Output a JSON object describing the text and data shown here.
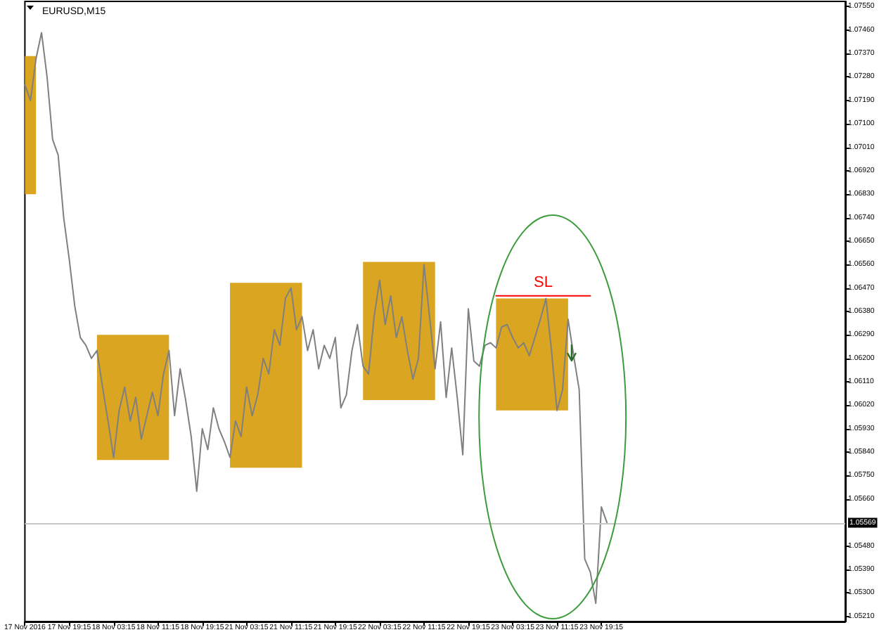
{
  "chart_data": {
    "type": "line",
    "title": "EURUSD,M15",
    "marker": "none",
    "categories": [
      "17 Nov 2016",
      null,
      null,
      null,
      null,
      null,
      null,
      null,
      "17 Nov 19:15",
      null,
      null,
      null,
      null,
      null,
      null,
      null,
      "18 Nov 03:15",
      null,
      null,
      null,
      null,
      null,
      null,
      null,
      "18 Nov 11:15",
      null,
      null,
      null,
      null,
      null,
      null,
      null,
      "18 Nov 19:15",
      null,
      null,
      null,
      null,
      null,
      null,
      null,
      "21 Nov 03:15",
      null,
      null,
      null,
      null,
      null,
      null,
      null,
      "21 Nov 11:15",
      null,
      null,
      null,
      null,
      null,
      null,
      null,
      "21 Nov 19:15",
      null,
      null,
      null,
      null,
      null,
      null,
      null,
      "22 Nov 03:15",
      null,
      null,
      null,
      null,
      null,
      null,
      null,
      "22 Nov 11:15",
      null,
      null,
      null,
      null,
      null,
      null,
      null,
      "22 Nov 19:15",
      null,
      null,
      null,
      null,
      null,
      null,
      null,
      "23 Nov 03:15",
      null,
      null,
      null,
      null,
      null,
      null,
      null,
      "23 Nov 11:15",
      null,
      null,
      null,
      null,
      null,
      null,
      null,
      "23 Nov 19:15",
      null,
      null,
      null,
      null,
      null,
      null,
      null,
      null,
      null,
      null,
      null,
      null,
      null,
      null,
      null,
      null,
      null,
      null,
      null,
      null,
      null,
      null,
      null,
      null,
      null,
      null,
      null,
      null,
      null,
      null,
      null,
      null,
      null,
      null,
      null,
      null,
      null,
      null,
      null,
      null,
      null,
      null,
      null,
      null
    ],
    "ylim": [
      1.0519,
      1.0757
    ],
    "yticks": [
      {
        "value": 1.0521,
        "label": "1.05210"
      },
      {
        "value": 1.053,
        "label": "1.05300"
      },
      {
        "value": 1.0539,
        "label": "1.05390"
      },
      {
        "value": 1.0548,
        "label": "1.05480"
      },
      {
        "value": 1.0566,
        "label": "1.05660"
      },
      {
        "value": 1.0575,
        "label": "1.05750"
      },
      {
        "value": 1.0584,
        "label": "1.05840"
      },
      {
        "value": 1.0593,
        "label": "1.05930"
      },
      {
        "value": 1.0602,
        "label": "1.06020"
      },
      {
        "value": 1.0611,
        "label": "1.06110"
      },
      {
        "value": 1.062,
        "label": "1.06200"
      },
      {
        "value": 1.0629,
        "label": "1.06290"
      },
      {
        "value": 1.0638,
        "label": "1.06380"
      },
      {
        "value": 1.0647,
        "label": "1.06470"
      },
      {
        "value": 1.0656,
        "label": "1.06560"
      },
      {
        "value": 1.0665,
        "label": "1.06650"
      },
      {
        "value": 1.0674,
        "label": "1.06740"
      },
      {
        "value": 1.0683,
        "label": "1.06830"
      },
      {
        "value": 1.0692,
        "label": "1.06920"
      },
      {
        "value": 1.0701,
        "label": "1.07010"
      },
      {
        "value": 1.071,
        "label": "1.07100"
      },
      {
        "value": 1.0719,
        "label": "1.07190"
      },
      {
        "value": 1.0728,
        "label": "1.07280"
      },
      {
        "value": 1.0737,
        "label": "1.07370"
      },
      {
        "value": 1.0746,
        "label": "1.07460"
      },
      {
        "value": 1.0755,
        "label": "1.07550"
      }
    ],
    "series": [
      {
        "color": "#daa520",
        "values": [
          null,
          null,
          null,
          null,
          null,
          null,
          null,
          null,
          null,
          null,
          null,
          null,
          null,
          null,
          null,
          null,
          null,
          null,
          null,
          null,
          null,
          null,
          null,
          null,
          null,
          null,
          null,
          null,
          null,
          null,
          null,
          null,
          null,
          null,
          null,
          null,
          null,
          null,
          null,
          null,
          null,
          null,
          null,
          null,
          null,
          null,
          null,
          null,
          null,
          null,
          null,
          null,
          null,
          null,
          null,
          null,
          null,
          null,
          null,
          null,
          null,
          null,
          null,
          null,
          null,
          null,
          null,
          null,
          null,
          null,
          null,
          null,
          null,
          null,
          null,
          null,
          null,
          null,
          null,
          null,
          null,
          null,
          null,
          null,
          null,
          null,
          null,
          null,
          null,
          null,
          null,
          null,
          null,
          null,
          null,
          null,
          null,
          null,
          null,
          null,
          null,
          null,
          null,
          null,
          null,
          null,
          null,
          null,
          null,
          null,
          null,
          null,
          null,
          null,
          null,
          null,
          null,
          null,
          null,
          null,
          null,
          null,
          null,
          null,
          null,
          null,
          null,
          null,
          null,
          null,
          null,
          null,
          null,
          null,
          null,
          null,
          null,
          null,
          null,
          null,
          null,
          null,
          null,
          null,
          null,
          null,
          null,
          null,
          null
        ],
        "lower": [
          1.0683,
          1.0683,
          1.0683,
          null,
          null,
          null,
          null,
          null,
          null,
          null,
          null,
          null,
          null,
          1.0581,
          1.0581,
          1.0581,
          1.0581,
          1.0581,
          1.0581,
          1.0581,
          1.0581,
          1.0581,
          1.0581,
          1.0581,
          1.0581,
          1.0581,
          1.0581,
          null,
          null,
          null,
          null,
          null,
          null,
          null,
          null,
          null,
          null,
          1.0578,
          1.0578,
          1.0578,
          1.0578,
          1.0578,
          1.0578,
          1.0578,
          1.0578,
          1.0578,
          1.0578,
          1.0578,
          1.0578,
          1.0578,
          1.0578,
          null,
          null,
          null,
          null,
          null,
          null,
          null,
          null,
          null,
          null,
          1.0604,
          1.0604,
          1.0604,
          1.0604,
          1.0604,
          1.0604,
          1.0604,
          1.0604,
          1.0604,
          1.0604,
          1.0604,
          1.0604,
          1.0604,
          1.0604,
          null,
          null,
          null,
          null,
          null,
          null,
          null,
          null,
          null,
          null,
          1.06,
          1.06,
          1.06,
          1.06,
          1.06,
          1.06,
          1.06,
          1.06,
          1.06,
          1.06,
          1.06,
          1.06,
          1.06,
          1.06,
          null,
          null,
          null,
          null,
          null,
          null,
          null,
          null,
          null,
          null,
          null,
          null,
          null,
          null,
          null,
          null,
          null,
          null,
          null,
          null,
          null,
          null,
          null,
          null,
          null,
          null,
          null,
          null,
          null,
          null,
          null,
          null,
          null,
          null,
          null,
          null,
          null,
          null,
          null,
          null,
          null,
          null,
          null,
          null,
          null,
          null,
          null,
          null,
          null,
          null
        ],
        "upper": [
          1.0736,
          1.0736,
          1.0736,
          null,
          null,
          null,
          null,
          null,
          null,
          null,
          null,
          null,
          null,
          1.0629,
          1.0629,
          1.0629,
          1.0629,
          1.0629,
          1.0629,
          1.0629,
          1.0629,
          1.0629,
          1.0629,
          1.0629,
          1.0629,
          1.0629,
          1.0629,
          null,
          null,
          null,
          null,
          null,
          null,
          null,
          null,
          null,
          null,
          1.0649,
          1.0649,
          1.0649,
          1.0649,
          1.0649,
          1.0649,
          1.0649,
          1.0649,
          1.0649,
          1.0649,
          1.0649,
          1.0649,
          1.0649,
          1.0649,
          null,
          null,
          null,
          null,
          null,
          null,
          null,
          null,
          null,
          null,
          1.0657,
          1.0657,
          1.0657,
          1.0657,
          1.0657,
          1.0657,
          1.0657,
          1.0657,
          1.0657,
          1.0657,
          1.0657,
          1.0657,
          1.0657,
          1.0657,
          null,
          null,
          null,
          null,
          null,
          null,
          null,
          null,
          null,
          null,
          1.0643,
          1.0643,
          1.0643,
          1.0643,
          1.0643,
          1.0643,
          1.0643,
          1.0643,
          1.0643,
          1.0643,
          1.0643,
          1.0643,
          1.0643,
          1.0643,
          null,
          null,
          null,
          null,
          null,
          null,
          null,
          null,
          null,
          null,
          null,
          null,
          null,
          null,
          null,
          null,
          null,
          null,
          null,
          null,
          null,
          null,
          null,
          null,
          null,
          null,
          null,
          null,
          null,
          null,
          null,
          null,
          null,
          null,
          null,
          null,
          null,
          null,
          null,
          null,
          null,
          null,
          null,
          null,
          null,
          null,
          null,
          null,
          null,
          null
        ]
      },
      {
        "color": "#808080",
        "values": [
          1.0725,
          1.0719,
          1.0735,
          1.0745,
          1.0728,
          1.0704,
          1.0698,
          1.0674,
          1.0658,
          1.064,
          1.0628,
          1.0625,
          1.062,
          1.0623,
          1.0609,
          1.0596,
          1.0582,
          1.06,
          1.0609,
          1.0596,
          1.0605,
          1.0589,
          1.0598,
          1.0607,
          1.0598,
          1.0614,
          1.0623,
          1.0598,
          1.0616,
          1.0604,
          1.059,
          1.0569,
          1.0593,
          1.0585,
          1.0601,
          1.0593,
          1.0588,
          1.0582,
          1.0596,
          1.059,
          1.0609,
          1.0598,
          1.0606,
          1.062,
          1.0614,
          1.0631,
          1.0625,
          1.0643,
          1.0647,
          1.0631,
          1.0636,
          1.0623,
          1.0631,
          1.0616,
          1.0625,
          1.062,
          1.0628,
          1.0601,
          1.0606,
          1.0623,
          1.0633,
          1.0617,
          1.0614,
          1.0636,
          1.065,
          1.0633,
          1.0644,
          1.0628,
          1.0636,
          1.0623,
          1.0612,
          1.062,
          1.0656,
          1.0636,
          1.0616,
          1.0634,
          1.0605,
          1.0624,
          1.0605,
          1.0583,
          1.0639,
          1.0619,
          1.0617,
          1.0625,
          1.0626,
          1.0624,
          1.0632,
          1.0633,
          1.0628,
          1.0624,
          1.0626,
          1.0621,
          1.0628,
          1.0635,
          1.0643,
          1.0623,
          1.06,
          1.0608,
          1.0635,
          1.0621,
          1.0608,
          1.0543,
          1.0538,
          1.0526,
          1.0563,
          1.0557,
          null,
          null,
          null,
          null,
          null,
          null,
          null,
          null,
          null,
          null,
          null,
          null,
          null,
          null,
          null,
          null,
          null,
          null,
          null,
          null,
          null,
          null,
          null,
          null,
          null,
          null,
          null,
          null,
          null,
          null,
          null,
          null,
          null,
          null,
          null,
          null,
          null,
          null,
          null,
          null,
          null,
          null,
          null
        ]
      },
      {
        "name": "SL",
        "color": "#ff0000",
        "values": [
          null,
          null,
          null,
          null,
          null,
          null,
          null,
          null,
          null,
          null,
          null,
          null,
          null,
          null,
          null,
          null,
          null,
          null,
          null,
          null,
          null,
          null,
          null,
          null,
          null,
          null,
          null,
          null,
          null,
          null,
          null,
          null,
          null,
          null,
          null,
          null,
          null,
          null,
          null,
          null,
          null,
          null,
          null,
          null,
          null,
          null,
          null,
          null,
          null,
          null,
          null,
          null,
          null,
          null,
          null,
          null,
          null,
          null,
          null,
          null,
          null,
          null,
          null,
          null,
          null,
          null,
          null,
          null,
          null,
          null,
          null,
          null,
          null,
          null,
          null,
          null,
          null,
          null,
          null,
          null,
          null,
          null,
          null,
          null,
          null,
          1.0644,
          1.0644,
          1.0644,
          1.0644,
          1.0644,
          1.0644,
          1.0644,
          1.0644,
          1.0644,
          1.0644,
          1.0644,
          1.0644,
          1.0644,
          1.0644,
          1.0644,
          1.0644,
          1.0644,
          1.0644,
          null,
          null,
          null,
          null,
          null,
          null,
          null,
          null,
          null,
          null,
          null,
          null,
          null,
          null,
          null,
          null,
          null,
          null,
          null,
          null,
          null,
          null,
          null,
          null,
          null,
          null,
          null,
          null,
          null,
          null,
          null,
          null,
          null,
          null,
          null,
          null,
          null,
          null,
          null,
          null,
          null,
          null,
          null,
          null,
          null,
          null
        ]
      }
    ],
    "ref_lines": [
      {
        "axis": "y",
        "value": 1.05569,
        "label": "1.05569",
        "color": "#c8c8c8"
      }
    ]
  }
}
